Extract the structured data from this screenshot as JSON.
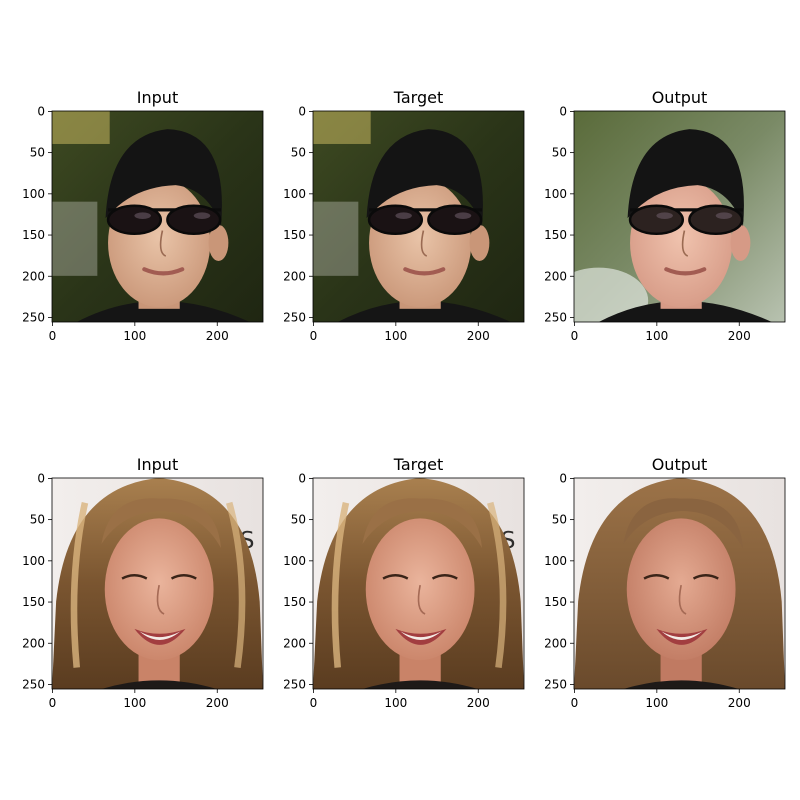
{
  "figure": {
    "rows": [
      {
        "panels": [
          {
            "title": "Input",
            "subject": "man with dark sunglasses",
            "variant": "input"
          },
          {
            "title": "Target",
            "subject": "man with dark sunglasses",
            "variant": "target"
          },
          {
            "title": "Output",
            "subject": "man with dark sunglasses",
            "variant": "output"
          }
        ]
      },
      {
        "panels": [
          {
            "title": "Input",
            "subject": "smiling woman with long hair",
            "variant": "input"
          },
          {
            "title": "Target",
            "subject": "smiling woman with long hair",
            "variant": "target"
          },
          {
            "title": "Output",
            "subject": "smiling woman with long hair",
            "variant": "output"
          }
        ]
      }
    ],
    "axes": {
      "xticks": [
        "0",
        "100",
        "200"
      ],
      "yticks": [
        "0",
        "50",
        "100",
        "150",
        "200",
        "250"
      ],
      "xtick_values": [
        0,
        100,
        200
      ],
      "ytick_values": [
        0,
        50,
        100,
        150,
        200,
        250
      ],
      "range": [
        0,
        256
      ]
    }
  }
}
